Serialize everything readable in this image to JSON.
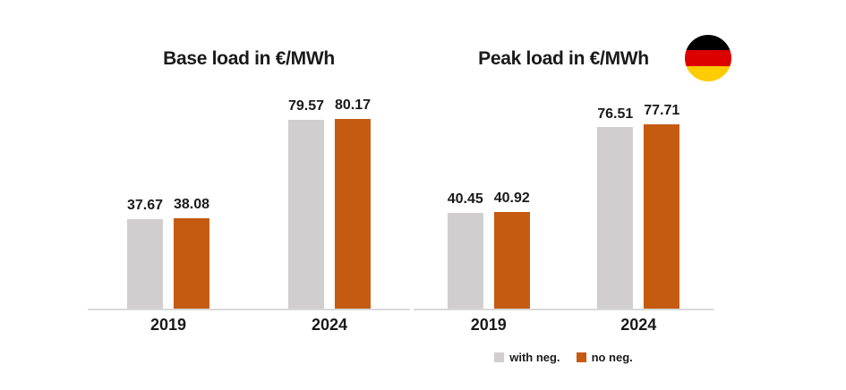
{
  "page": {
    "background": "#ffffff"
  },
  "colors": {
    "with_neg": "#D0CECE",
    "no_neg": "#C55A11",
    "axis_line": "#D9D9D9",
    "text": "#1a1a1a"
  },
  "flag": {
    "country": "germany",
    "stripe_colors": [
      "#000000",
      "#DD0000",
      "#FFCC00"
    ]
  },
  "legend": {
    "items": [
      {
        "key": "with-neg",
        "label": "with neg.",
        "color": "#D0CECE"
      },
      {
        "key": "no-neg",
        "label": "no neg.",
        "color": "#C55A11"
      }
    ]
  },
  "chart_data": [
    {
      "type": "bar",
      "title": "Base load in €/MWh",
      "categories": [
        "2019",
        "2024"
      ],
      "series": [
        {
          "name": "with neg.",
          "color": "#D0CECE",
          "values": [
            37.67,
            79.57
          ],
          "value_labels": [
            "37.67",
            "79.57"
          ]
        },
        {
          "name": "no neg.",
          "color": "#C55A11",
          "values": [
            38.08,
            80.17
          ],
          "value_labels": [
            "38.08",
            "80.17"
          ]
        }
      ],
      "ylim": [
        0,
        92.5
      ],
      "grid": false,
      "data_labels": true,
      "legend_position": "none"
    },
    {
      "type": "bar",
      "title": "Peak load in €/MWh",
      "categories": [
        "2019",
        "2024"
      ],
      "series": [
        {
          "name": "with neg.",
          "color": "#D0CECE",
          "values": [
            40.45,
            76.51
          ],
          "value_labels": [
            "40.45",
            "76.51"
          ]
        },
        {
          "name": "no neg.",
          "color": "#C55A11",
          "values": [
            40.92,
            77.71
          ],
          "value_labels": [
            "40.92",
            "77.71"
          ]
        }
      ],
      "ylim": [
        0,
        92.5
      ],
      "grid": false,
      "data_labels": true,
      "legend_position": "bottom"
    }
  ]
}
